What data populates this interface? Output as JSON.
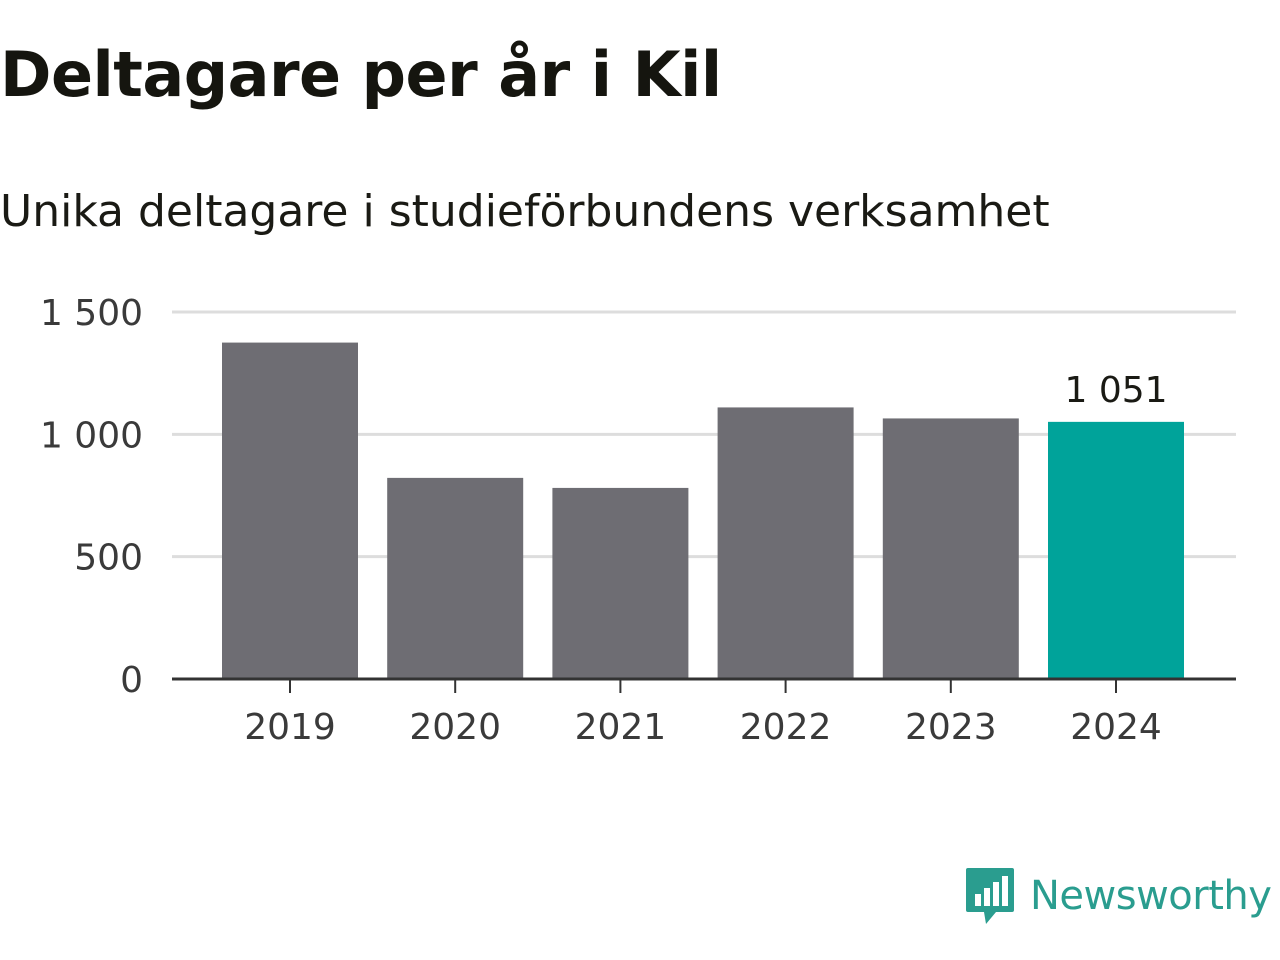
{
  "title": "Deltagare per år i Kil",
  "subtitle": "Unika deltagare i studieförbundens verksamhet",
  "brand": {
    "name": "Newsworthy",
    "color": "#2a9d8f"
  },
  "colors": {
    "bar": "#6e6d73",
    "highlight": "#00a39a",
    "grid": "#dddddd",
    "axis": "#333333"
  },
  "chart_data": {
    "type": "bar",
    "title": "Deltagare per år i Kil",
    "subtitle": "Unika deltagare i studieförbundens verksamhet",
    "xlabel": "",
    "ylabel": "",
    "categories": [
      "2019",
      "2020",
      "2021",
      "2022",
      "2023",
      "2024"
    ],
    "values": [
      1375,
      822,
      781,
      1110,
      1065,
      1051
    ],
    "highlight_index": 5,
    "data_labels": [
      {
        "index": 5,
        "text": "1 051"
      }
    ],
    "ylim": [
      0,
      1500
    ],
    "yticks": [
      0,
      500,
      1000,
      1500
    ],
    "ytick_labels": [
      "0",
      "500",
      "1 000",
      "1 500"
    ],
    "grid": true,
    "legend": "none"
  }
}
